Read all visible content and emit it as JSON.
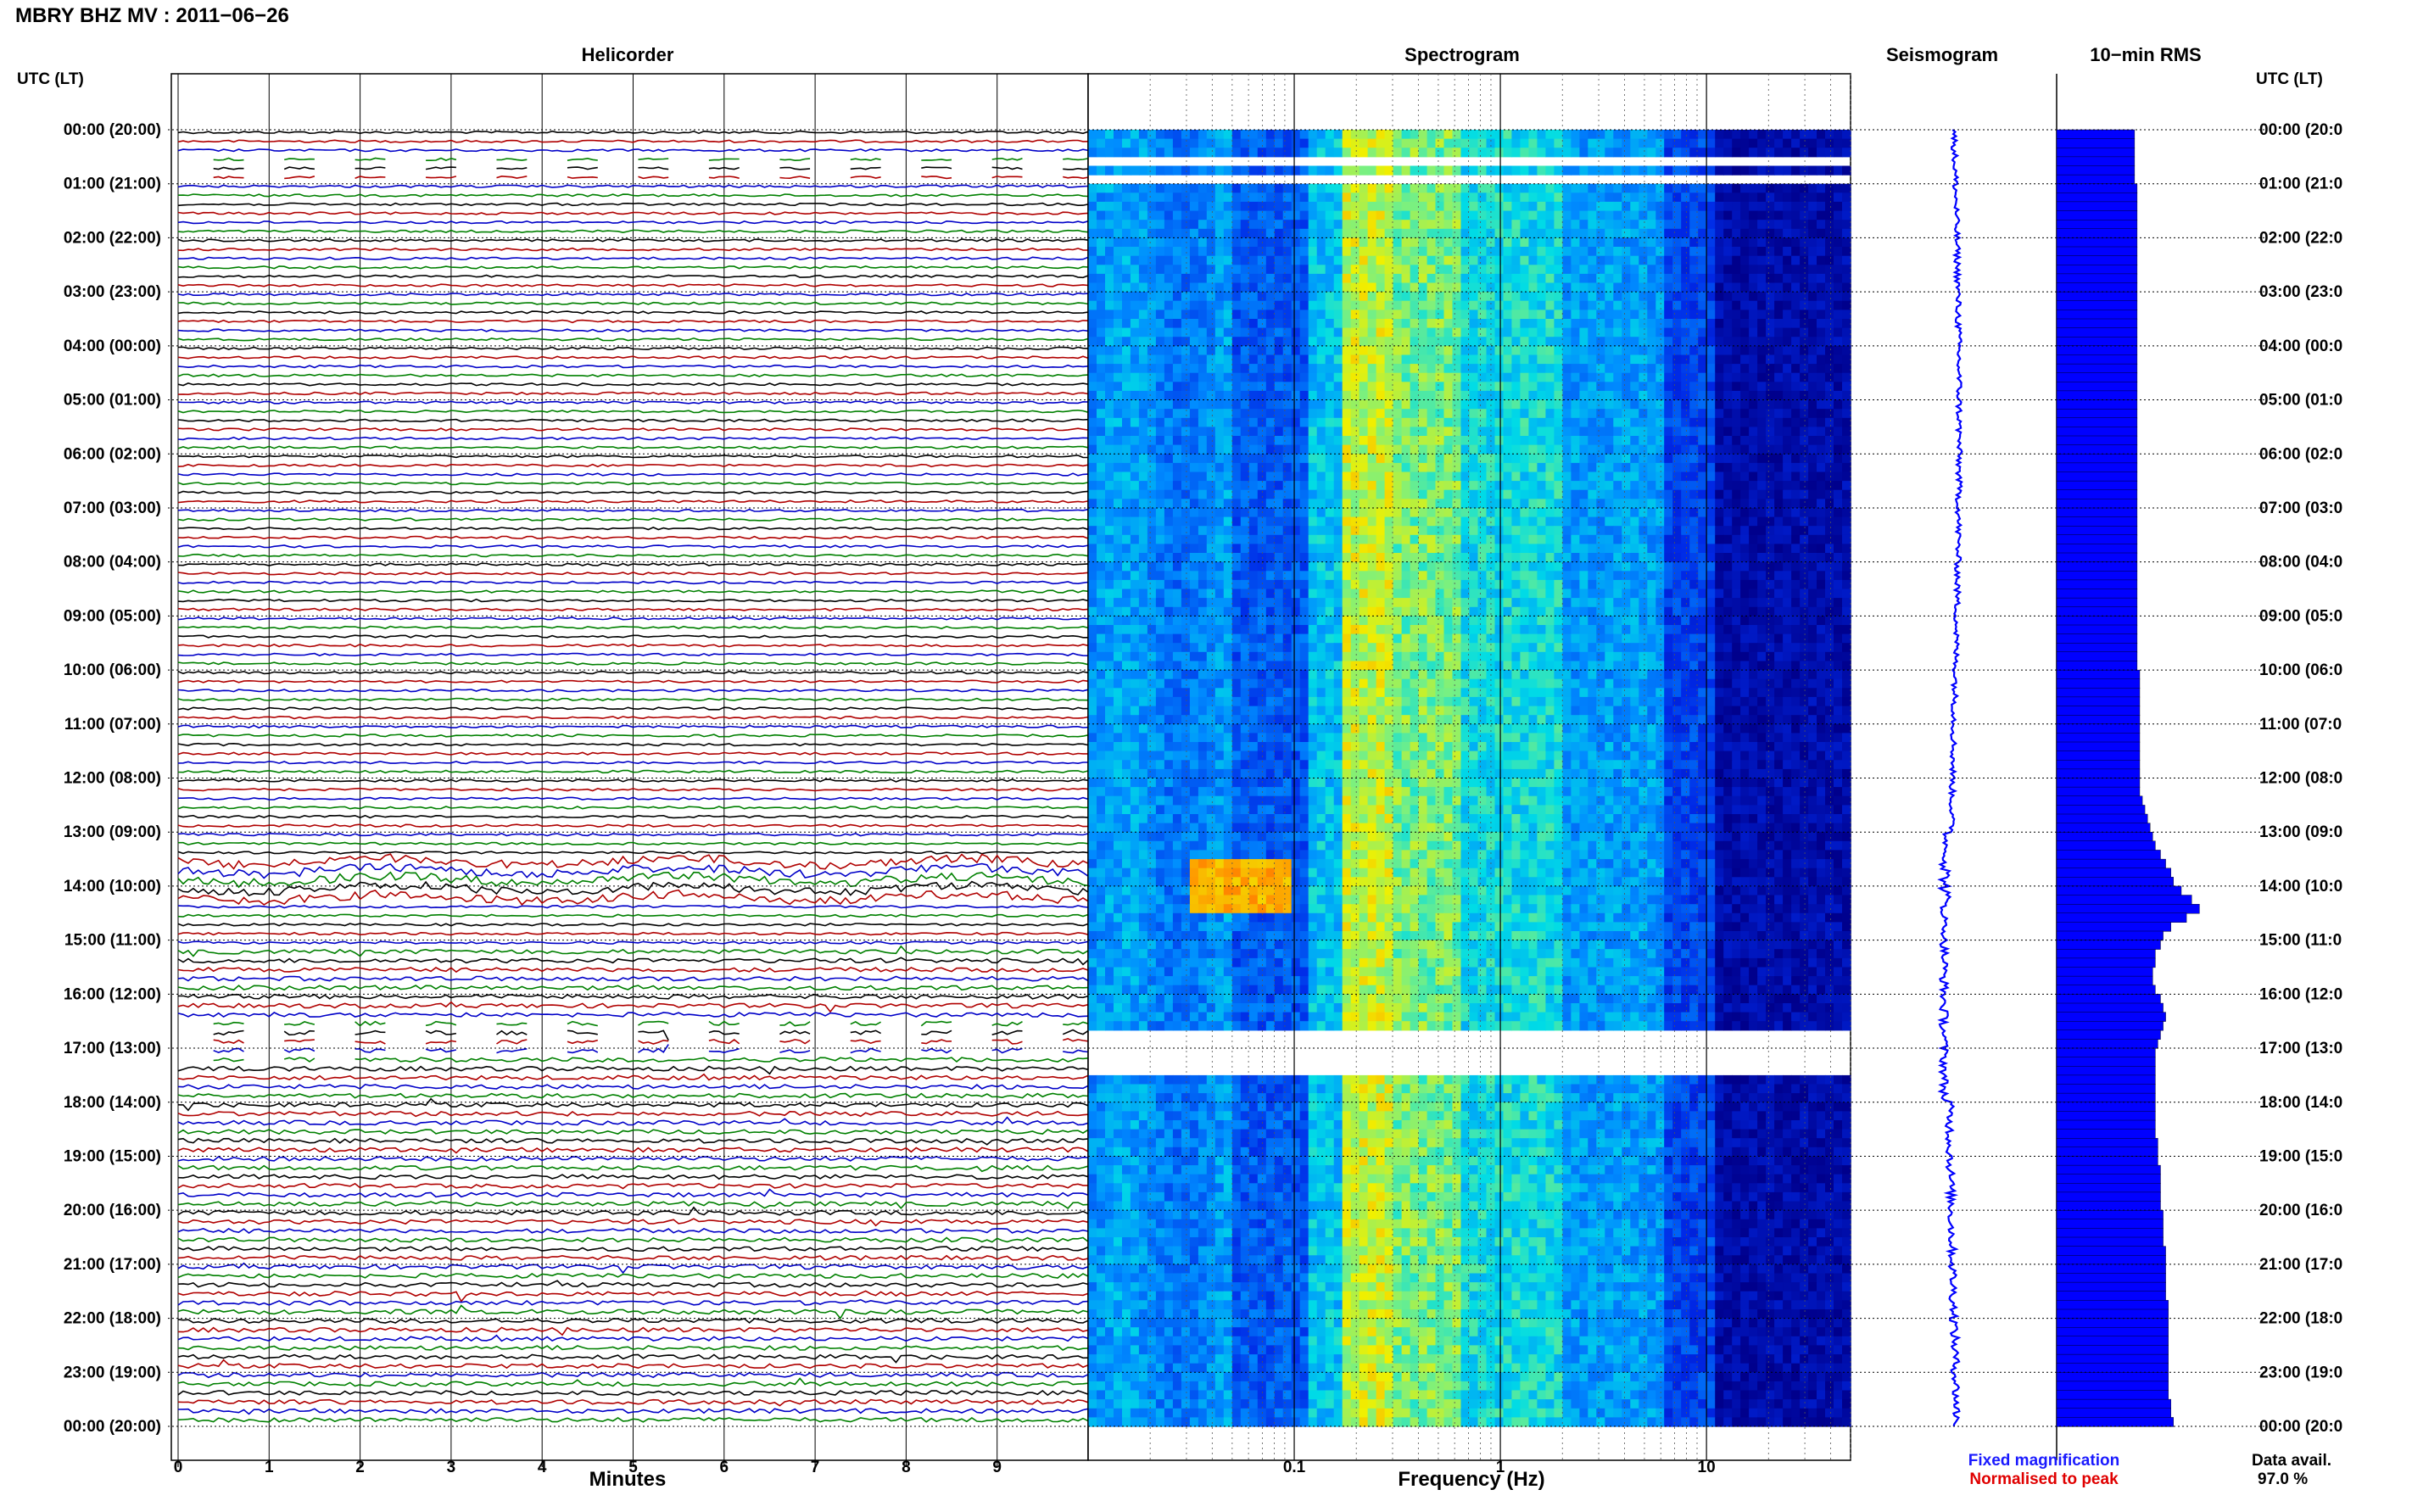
{
  "header": {
    "title": "MBRY BHZ MV : 2011−06−26"
  },
  "panels": {
    "helicorder_title": "Helicorder",
    "spectrogram_title": "Spectrogram",
    "seismogram_title": "Seismogram",
    "rms_title": "10−min RMS"
  },
  "axes": {
    "left_axis_label": "UTC (LT)",
    "right_axis_label": "UTC (LT)",
    "helicorder_xlabel": "Minutes",
    "spectrogram_xlabel": "Frequency (Hz)"
  },
  "time_labels": [
    "00:00 (20:00)",
    "01:00 (21:00)",
    "02:00 (22:00)",
    "03:00 (23:00)",
    "04:00 (00:00)",
    "05:00 (01:00)",
    "06:00 (02:00)",
    "07:00 (03:00)",
    "08:00 (04:00)",
    "09:00 (05:00)",
    "10:00 (06:00)",
    "11:00 (07:00)",
    "12:00 (08:00)",
    "13:00 (09:00)",
    "14:00 (10:00)",
    "15:00 (11:00)",
    "16:00 (12:00)",
    "17:00 (13:00)",
    "18:00 (14:00)",
    "19:00 (15:00)",
    "20:00 (16:00)",
    "21:00 (17:00)",
    "22:00 (18:00)",
    "23:00 (19:00)",
    "00:00 (20:00)"
  ],
  "right_time_labels": [
    "00:00 (20:0",
    "01:00 (21:0",
    "02:00 (22:0",
    "03:00 (23:0",
    "04:00 (00:0",
    "05:00 (01:0",
    "06:00 (02:0",
    "07:00 (03:0",
    "08:00 (04:0",
    "09:00 (05:0",
    "10:00 (06:0",
    "11:00 (07:0",
    "12:00 (08:0",
    "13:00 (09:0",
    "14:00 (10:0",
    "15:00 (11:0",
    "16:00 (12:0",
    "17:00 (13:0",
    "18:00 (14:0",
    "19:00 (15:0",
    "20:00 (16:0",
    "21:00 (17:0",
    "22:00 (18:0",
    "23:00 (19:0",
    "00:00 (20:0"
  ],
  "legend": {
    "fixed_label": "Fixed magnification",
    "normalised_label": "Normalised to peak",
    "fixed_color": "#1a1aff",
    "normalised_color": "#e00000"
  },
  "data_availability": {
    "label": "Data avail.",
    "value": "97.0 %"
  },
  "colors": {
    "trace_colors": [
      "#000000",
      "#b00000",
      "#0000c8",
      "#008000"
    ],
    "seismogram_color": "#0000ff",
    "rms_color": "#0000ff",
    "spectrogram_low": "#00008b",
    "spectrogram_high": "#ffff00"
  },
  "chart_data": [
    {
      "type": "line",
      "title": "Helicorder",
      "xlabel": "Minutes",
      "ylabel": "UTC (LT)",
      "xlim": [
        0,
        10
      ],
      "x_ticks": [
        "0",
        "1",
        "2",
        "3",
        "4",
        "5",
        "6",
        "7",
        "8",
        "9"
      ],
      "ylim_hours": [
        0,
        24
      ],
      "traces_per_hour": 6,
      "gaps_hours": [
        [
          0.5,
          1.0
        ],
        [
          16.5,
          17.2
        ]
      ],
      "event_hours": [
        13.5,
        14.2
      ]
    },
    {
      "type": "heatmap",
      "title": "Spectrogram",
      "xlabel": "Frequency (Hz)",
      "xscale": "log",
      "xlim": [
        0.01,
        50
      ],
      "x_ticks": [
        "0.1",
        "1",
        "10"
      ],
      "gaps_hours": [
        [
          0.45,
          0.55
        ],
        [
          0.75,
          1.0
        ],
        [
          14.45,
          14.5
        ],
        [
          16.6,
          17.5
        ]
      ],
      "event": {
        "hour_start": 13.5,
        "hour_end": 14.5,
        "freq_min": 0.03,
        "freq_max": 0.1
      }
    },
    {
      "type": "line",
      "title": "Seismogram",
      "ylim_hours": [
        0,
        24
      ]
    },
    {
      "type": "bar",
      "title": "10−min RMS",
      "ylim_hours": [
        0,
        24
      ],
      "values": [
        30,
        30,
        30,
        30,
        30,
        30,
        31,
        31,
        31,
        31,
        31,
        31,
        31,
        31,
        31,
        31,
        31,
        31,
        31,
        31,
        31,
        31,
        31,
        31,
        31,
        31,
        31,
        31,
        31,
        31,
        31,
        31,
        31,
        31,
        31,
        31,
        31,
        31,
        31,
        31,
        31,
        31,
        31,
        31,
        31,
        31,
        31,
        31,
        31,
        31,
        31,
        31,
        31,
        31,
        31,
        31,
        31,
        31,
        31,
        31,
        32,
        32,
        32,
        32,
        32,
        32,
        32,
        32,
        32,
        32,
        32,
        32,
        32,
        32,
        33,
        34,
        35,
        36,
        37,
        38,
        40,
        42,
        44,
        45,
        48,
        52,
        55,
        50,
        44,
        41,
        40,
        38,
        38,
        37,
        37,
        38,
        40,
        41,
        42,
        41,
        40,
        39,
        38,
        38,
        38,
        38,
        38,
        38,
        38,
        38,
        38,
        38,
        39,
        39,
        39,
        40,
        40,
        40,
        40,
        40,
        41,
        41,
        41,
        41,
        42,
        42,
        42,
        42,
        42,
        42,
        43,
        43,
        43,
        43,
        43,
        43,
        43,
        43,
        43,
        43,
        43,
        44,
        44,
        45
      ]
    }
  ]
}
